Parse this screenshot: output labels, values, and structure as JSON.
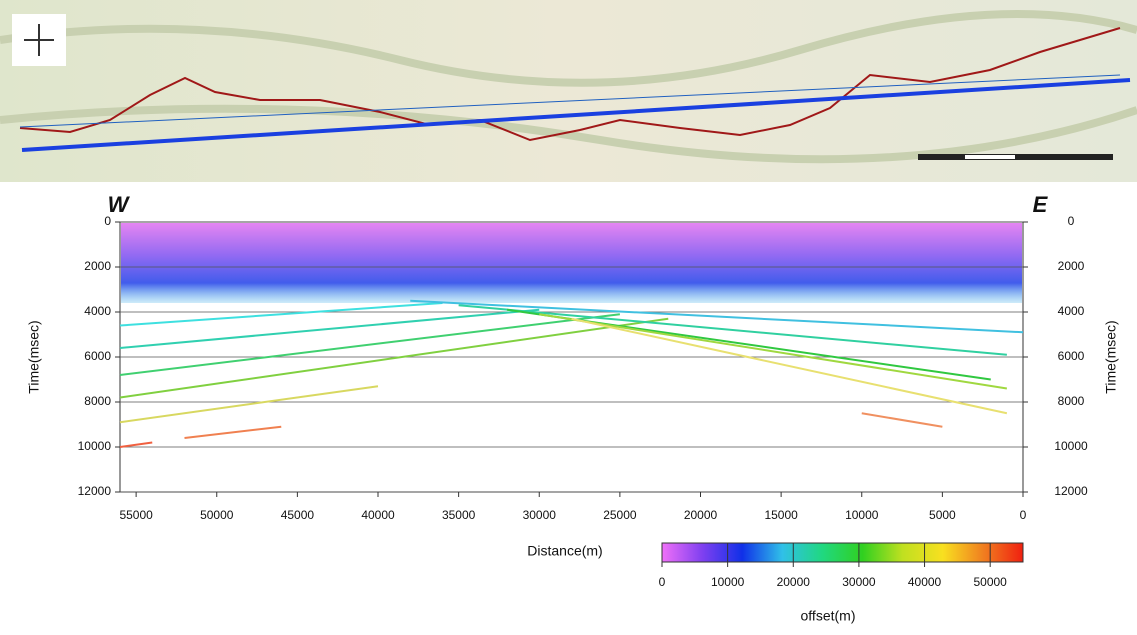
{
  "chart_data": {
    "type": "line",
    "left_title": "W",
    "right_title": "E",
    "xlabel": "Distance(m)",
    "ylabel": "Time(msec)",
    "y2label": "Time(msec)",
    "xlim": [
      56000,
      0
    ],
    "xticks": [
      55000,
      50000,
      45000,
      40000,
      35000,
      30000,
      25000,
      20000,
      15000,
      10000,
      5000,
      0
    ],
    "ylim": [
      12000,
      0
    ],
    "yticks": [
      0,
      2000,
      4000,
      6000,
      8000,
      10000,
      12000
    ],
    "y2lim": [
      12000,
      0
    ],
    "y2ticks": [
      0,
      2000,
      4000,
      6000,
      8000,
      10000,
      12000
    ],
    "grid": true,
    "series": [
      {
        "color": "#3ee0e0",
        "x": [
          56000,
          36000
        ],
        "values": [
          4600,
          3600
        ]
      },
      {
        "color": "#30d0b0",
        "x": [
          56000,
          30000
        ],
        "values": [
          5600,
          3900
        ]
      },
      {
        "color": "#40d070",
        "x": [
          56000,
          25000
        ],
        "values": [
          6800,
          4100
        ]
      },
      {
        "color": "#80d040",
        "x": [
          56000,
          22000
        ],
        "values": [
          7800,
          4300
        ]
      },
      {
        "color": "#d8d860",
        "x": [
          56000,
          40000
        ],
        "values": [
          8900,
          7300
        ]
      },
      {
        "color": "#f08050",
        "x": [
          52000,
          46000
        ],
        "values": [
          9600,
          9100
        ]
      },
      {
        "color": "#f06040",
        "x": [
          56000,
          54000
        ],
        "values": [
          10000,
          9800
        ]
      },
      {
        "color": "#40c0e0",
        "x": [
          38000,
          0
        ],
        "values": [
          3500,
          4900
        ]
      },
      {
        "color": "#30d0a0",
        "x": [
          35000,
          1000
        ],
        "values": [
          3700,
          5900
        ]
      },
      {
        "color": "#30c840",
        "x": [
          32000,
          2000
        ],
        "values": [
          3900,
          7000
        ]
      },
      {
        "color": "#a0d840",
        "x": [
          30000,
          1000
        ],
        "values": [
          4100,
          7400
        ]
      },
      {
        "color": "#e8e070",
        "x": [
          28000,
          1000
        ],
        "values": [
          4300,
          8500
        ]
      },
      {
        "color": "#f09060",
        "x": [
          10000,
          5000
        ],
        "values": [
          8500,
          9100
        ]
      }
    ],
    "colorbar": {
      "label": "offset(m)",
      "lim": [
        0,
        55000
      ],
      "ticks": [
        0,
        10000,
        20000,
        30000,
        40000,
        50000
      ],
      "colors": [
        "#f070f8",
        "#8040f0",
        "#1030e8",
        "#30c0e8",
        "#20d880",
        "#30d020",
        "#c0e020",
        "#f8e020",
        "#f08020",
        "#f02010"
      ]
    }
  }
}
